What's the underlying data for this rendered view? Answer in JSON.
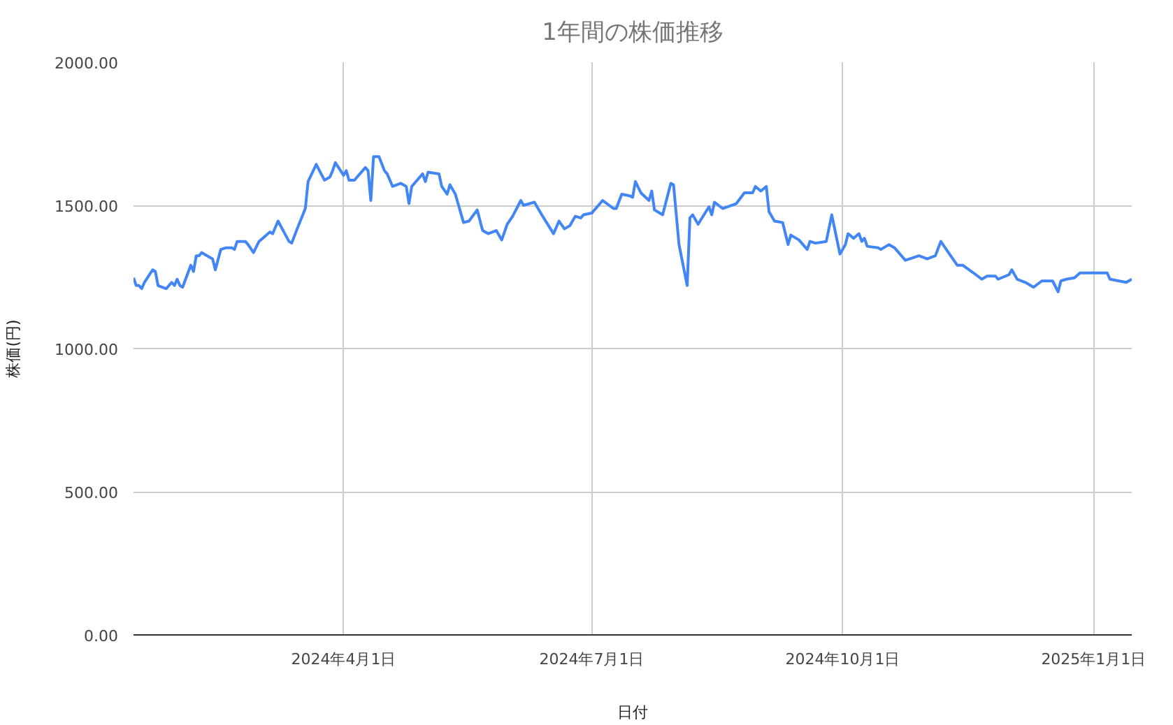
{
  "chart_data": {
    "type": "line",
    "title": "1年間の株価推移",
    "xlabel": "日付",
    "ylabel": "株価(円)",
    "x": [
      "2024-01-15",
      "2024-01-16",
      "2024-01-17",
      "2024-01-18",
      "2024-01-19",
      "2024-01-22",
      "2024-01-23",
      "2024-01-24",
      "2024-01-27",
      "2024-01-29",
      "2024-01-30",
      "2024-01-31",
      "2024-02-01",
      "2024-02-02",
      "2024-02-05",
      "2024-02-06",
      "2024-02-07",
      "2024-02-08",
      "2024-02-09",
      "2024-02-11",
      "2024-02-13",
      "2024-02-14",
      "2024-02-16",
      "2024-02-18",
      "2024-02-20",
      "2024-02-21",
      "2024-02-22",
      "2024-02-25",
      "2024-02-26",
      "2024-02-28",
      "2024-03-01",
      "2024-03-03",
      "2024-03-05",
      "2024-03-06",
      "2024-03-07",
      "2024-03-08",
      "2024-03-12",
      "2024-03-13",
      "2024-03-15",
      "2024-03-18",
      "2024-03-19",
      "2024-03-22",
      "2024-03-25",
      "2024-03-27",
      "2024-03-28",
      "2024-03-29",
      "2024-04-01",
      "2024-04-02",
      "2024-04-03",
      "2024-04-05",
      "2024-04-09",
      "2024-04-10",
      "2024-04-11",
      "2024-04-12",
      "2024-04-14",
      "2024-04-16",
      "2024-04-17",
      "2024-04-19",
      "2024-04-22",
      "2024-04-24",
      "2024-04-25",
      "2024-04-26",
      "2024-04-30",
      "2024-05-01",
      "2024-05-02",
      "2024-05-06",
      "2024-05-07",
      "2024-05-09",
      "2024-05-10",
      "2024-05-12",
      "2024-05-15",
      "2024-05-17",
      "2024-05-20",
      "2024-05-22",
      "2024-05-24",
      "2024-05-27",
      "2024-05-29",
      "2024-05-31",
      "2024-06-02",
      "2024-06-05",
      "2024-06-06",
      "2024-06-10",
      "2024-06-12",
      "2024-06-13",
      "2024-06-17",
      "2024-06-19",
      "2024-06-21",
      "2024-06-23",
      "2024-06-25",
      "2024-06-27",
      "2024-06-28",
      "2024-07-01",
      "2024-07-05",
      "2024-07-09",
      "2024-07-10",
      "2024-07-12",
      "2024-07-15",
      "2024-07-16",
      "2024-07-17",
      "2024-07-19",
      "2024-07-22",
      "2024-07-23",
      "2024-07-24",
      "2024-07-27",
      "2024-07-30",
      "2024-07-31",
      "2024-08-02",
      "2024-08-05",
      "2024-08-06",
      "2024-08-07",
      "2024-08-09",
      "2024-08-13",
      "2024-08-14",
      "2024-08-15",
      "2024-08-18",
      "2024-08-23",
      "2024-08-26",
      "2024-08-27",
      "2024-08-29",
      "2024-08-30",
      "2024-09-01",
      "2024-09-03",
      "2024-09-04",
      "2024-09-06",
      "2024-09-09",
      "2024-09-11",
      "2024-09-12",
      "2024-09-15",
      "2024-09-18",
      "2024-09-19",
      "2024-09-21",
      "2024-09-25",
      "2024-09-27",
      "2024-09-30",
      "2024-10-02",
      "2024-10-03",
      "2024-10-05",
      "2024-10-07",
      "2024-10-08",
      "2024-10-09",
      "2024-10-10",
      "2024-10-14",
      "2024-10-15",
      "2024-10-18",
      "2024-10-20",
      "2024-10-24",
      "2024-10-29",
      "2024-11-01",
      "2024-11-04",
      "2024-11-06",
      "2024-11-08",
      "2024-11-12",
      "2024-11-14",
      "2024-11-18",
      "2024-11-21",
      "2024-11-23",
      "2024-11-26",
      "2024-11-27",
      "2024-12-01",
      "2024-12-02",
      "2024-12-04",
      "2024-12-07",
      "2024-12-10",
      "2024-12-13",
      "2024-12-17",
      "2024-12-19",
      "2024-12-20",
      "2024-12-22",
      "2024-12-25",
      "2024-12-27",
      "2025-01-01",
      "2025-01-06",
      "2025-01-07",
      "2025-01-13",
      "2025-01-15"
    ],
    "series": [
      {
        "color": "#4285f4",
        "values": [
          1247,
          1220,
          1220,
          1209,
          1231,
          1275,
          1269,
          1220,
          1209,
          1231,
          1220,
          1242,
          1220,
          1214,
          1291,
          1269,
          1324,
          1324,
          1335,
          1324,
          1313,
          1275,
          1346,
          1352,
          1352,
          1346,
          1374,
          1374,
          1363,
          1335,
          1374,
          1390,
          1407,
          1401,
          1423,
          1445,
          1374,
          1368,
          1418,
          1489,
          1583,
          1643,
          1588,
          1599,
          1621,
          1649,
          1605,
          1621,
          1588,
          1588,
          1632,
          1621,
          1517,
          1670,
          1670,
          1621,
          1610,
          1566,
          1577,
          1566,
          1506,
          1566,
          1610,
          1583,
          1616,
          1610,
          1566,
          1539,
          1572,
          1539,
          1440,
          1445,
          1484,
          1412,
          1401,
          1412,
          1379,
          1434,
          1462,
          1517,
          1500,
          1511,
          1478,
          1462,
          1401,
          1445,
          1418,
          1429,
          1462,
          1456,
          1467,
          1473,
          1517,
          1489,
          1489,
          1539,
          1533,
          1528,
          1583,
          1544,
          1517,
          1550,
          1484,
          1467,
          1577,
          1572,
          1363,
          1220,
          1456,
          1467,
          1434,
          1495,
          1467,
          1511,
          1489,
          1506,
          1544,
          1544,
          1544,
          1566,
          1550,
          1566,
          1478,
          1445,
          1440,
          1363,
          1396,
          1379,
          1346,
          1374,
          1368,
          1374,
          1467,
          1330,
          1363,
          1401,
          1385,
          1401,
          1374,
          1385,
          1357,
          1352,
          1346,
          1363,
          1352,
          1308,
          1324,
          1313,
          1324,
          1374,
          1346,
          1291,
          1291,
          1264,
          1242,
          1253,
          1253,
          1242,
          1258,
          1275,
          1242,
          1231,
          1214,
          1236,
          1236,
          1198,
          1236,
          1242,
          1247,
          1264,
          1264,
          1264,
          1242,
          1231,
          1242
        ]
      }
    ],
    "xlim": [
      "2024-01-15",
      "2025-01-15"
    ],
    "xticks": [
      {
        "value": "2024-04-01",
        "label": "2024年4月1日"
      },
      {
        "value": "2024-07-01",
        "label": "2024年7月1日"
      },
      {
        "value": "2024-10-01",
        "label": "2024年10月1日"
      },
      {
        "value": "2025-01-01",
        "label": "2025年1月1日"
      }
    ],
    "ylim": [
      0,
      2000
    ],
    "yticks": [
      {
        "value": 0,
        "label": "0.00"
      },
      {
        "value": 500,
        "label": "500.00"
      },
      {
        "value": 1000,
        "label": "1000.00"
      },
      {
        "value": 1500,
        "label": "1500.00"
      },
      {
        "value": 2000,
        "label": "2000.00"
      }
    ],
    "grid": true,
    "marker": "none",
    "line_style": "solid"
  }
}
